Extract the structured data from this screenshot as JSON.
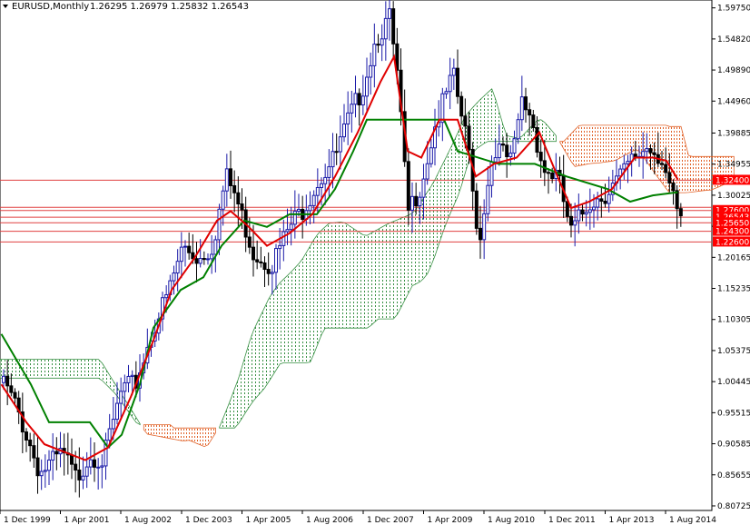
{
  "header": {
    "symbol_label": "EURUSD,Monthly",
    "ohlc_text": "1.26295 1.26979 1.25832 1.26543"
  },
  "colors": {
    "background": "#ffffff",
    "bull_candle": "#1a1aa8",
    "bear_candle": "#000000",
    "tenkan": "#e00000",
    "kijun": "#008000",
    "cloud_bear": "#e05a1e",
    "cloud_bull": "#2e8b3a",
    "level_line": "#e04040",
    "level_label_bg": "#ff0000",
    "level_label_text": "#ffffff",
    "axis_text": "#000000"
  },
  "chart_data": {
    "type": "candlestick",
    "title": "EURUSD,Monthly",
    "ylim": [
      0.8,
      1.61
    ],
    "y_ticks": [
      "1.59750",
      "1.54820",
      "1.49890",
      "1.44960",
      "1.39885",
      "1.34955",
      "1.30025",
      "1.25095",
      "1.20165",
      "1.15235",
      "1.10305",
      "1.05375",
      "1.00445",
      "0.95515",
      "0.90585",
      "0.85655",
      "0.80725"
    ],
    "x_ticks": [
      "1 Dec 1999",
      "1 Apr 2001",
      "1 Aug 2002",
      "1 Dec 2003",
      "1 Apr 2005",
      "1 Aug 2006",
      "1 Dec 2007",
      "1 Apr 2009",
      "1 Aug 2010",
      "1 Dec 2011",
      "1 Apr 2013",
      "1 Aug 2014"
    ],
    "levels": [
      {
        "label": "1.32400",
        "value": 1.324,
        "labeled": true
      },
      {
        "label": "",
        "value": 1.281,
        "labeled": false
      },
      {
        "label": "1.27600",
        "value": 1.276,
        "labeled": true
      },
      {
        "label": "1.26543",
        "value": 1.26543,
        "labeled": true
      },
      {
        "label": "1.25650",
        "value": 1.2565,
        "labeled": true
      },
      {
        "label": "1.24300",
        "value": 1.243,
        "labeled": true
      },
      {
        "label": "1.22600",
        "value": 1.226,
        "labeled": true
      }
    ],
    "price_points": [
      [
        1999.95,
        1.01
      ],
      [
        2000.3,
        0.96
      ],
      [
        2000.8,
        0.86
      ],
      [
        2001.3,
        0.89
      ],
      [
        2001.6,
        0.85
      ],
      [
        2001.9,
        0.89
      ],
      [
        2002.2,
        0.88
      ],
      [
        2002.6,
        0.99
      ],
      [
        2002.9,
        1.0
      ],
      [
        2003.3,
        1.09
      ],
      [
        2003.6,
        1.14
      ],
      [
        2003.95,
        1.22
      ],
      [
        2004.3,
        1.2
      ],
      [
        2004.6,
        1.22
      ],
      [
        2004.9,
        1.33
      ],
      [
        2005.1,
        1.3
      ],
      [
        2005.5,
        1.21
      ],
      [
        2005.9,
        1.19
      ],
      [
        2006.3,
        1.25
      ],
      [
        2006.6,
        1.28
      ],
      [
        2006.9,
        1.32
      ],
      [
        2007.3,
        1.36
      ],
      [
        2007.6,
        1.42
      ],
      [
        2007.9,
        1.47
      ],
      [
        2008.2,
        1.55
      ],
      [
        2008.5,
        1.58
      ],
      [
        2008.7,
        1.47
      ],
      [
        2008.9,
        1.27
      ],
      [
        2009.2,
        1.32
      ],
      [
        2009.5,
        1.41
      ],
      [
        2009.9,
        1.49
      ],
      [
        2010.3,
        1.35
      ],
      [
        2010.45,
        1.22
      ],
      [
        2010.8,
        1.38
      ],
      [
        2011.2,
        1.35
      ],
      [
        2011.4,
        1.45
      ],
      [
        2011.6,
        1.43
      ],
      [
        2011.9,
        1.34
      ],
      [
        2012.2,
        1.33
      ],
      [
        2012.5,
        1.24
      ],
      [
        2012.9,
        1.29
      ],
      [
        2013.2,
        1.3
      ],
      [
        2013.6,
        1.33
      ],
      [
        2013.9,
        1.36
      ],
      [
        2014.2,
        1.38
      ],
      [
        2014.5,
        1.36
      ],
      [
        2014.75,
        1.29
      ],
      [
        2014.9,
        1.255
      ]
    ],
    "tenkan": [
      [
        1999.95,
        1.0
      ],
      [
        2000.5,
        0.94
      ],
      [
        2000.9,
        0.905
      ],
      [
        2001.8,
        0.88
      ],
      [
        2002.3,
        0.9
      ],
      [
        2002.8,
        0.98
      ],
      [
        2003.3,
        1.07
      ],
      [
        2003.7,
        1.15
      ],
      [
        2004.2,
        1.2
      ],
      [
        2004.7,
        1.26
      ],
      [
        2005.0,
        1.275
      ],
      [
        2005.4,
        1.25
      ],
      [
        2005.8,
        1.22
      ],
      [
        2006.3,
        1.24
      ],
      [
        2006.8,
        1.27
      ],
      [
        2007.3,
        1.33
      ],
      [
        2007.8,
        1.4
      ],
      [
        2008.3,
        1.48
      ],
      [
        2008.6,
        1.52
      ],
      [
        2008.9,
        1.37
      ],
      [
        2009.2,
        1.36
      ],
      [
        2009.6,
        1.42
      ],
      [
        2010.0,
        1.42
      ],
      [
        2010.4,
        1.33
      ],
      [
        2010.8,
        1.35
      ],
      [
        2011.3,
        1.36
      ],
      [
        2011.8,
        1.4
      ],
      [
        2012.2,
        1.33
      ],
      [
        2012.5,
        1.28
      ],
      [
        2012.9,
        1.29
      ],
      [
        2013.4,
        1.31
      ],
      [
        2013.9,
        1.36
      ],
      [
        2014.3,
        1.36
      ],
      [
        2014.6,
        1.355
      ],
      [
        2014.85,
        1.325
      ]
    ],
    "kijun": [
      [
        1999.95,
        1.08
      ],
      [
        2000.6,
        1.0
      ],
      [
        2001.0,
        0.94
      ],
      [
        2001.9,
        0.94
      ],
      [
        2002.3,
        0.9
      ],
      [
        2002.6,
        0.92
      ],
      [
        2003.0,
        1.0
      ],
      [
        2003.3,
        1.09
      ],
      [
        2003.6,
        1.12
      ],
      [
        2003.9,
        1.15
      ],
      [
        2004.4,
        1.17
      ],
      [
        2004.8,
        1.22
      ],
      [
        2005.3,
        1.26
      ],
      [
        2005.8,
        1.25
      ],
      [
        2006.3,
        1.27
      ],
      [
        2006.9,
        1.27
      ],
      [
        2007.3,
        1.31
      ],
      [
        2007.7,
        1.37
      ],
      [
        2008.0,
        1.42
      ],
      [
        2009.1,
        1.42
      ],
      [
        2009.7,
        1.42
      ],
      [
        2010.0,
        1.37
      ],
      [
        2010.9,
        1.35
      ],
      [
        2011.7,
        1.35
      ],
      [
        2012.4,
        1.33
      ],
      [
        2013.3,
        1.31
      ],
      [
        2013.8,
        1.29
      ],
      [
        2014.3,
        1.3
      ],
      [
        2014.85,
        1.305
      ]
    ]
  }
}
